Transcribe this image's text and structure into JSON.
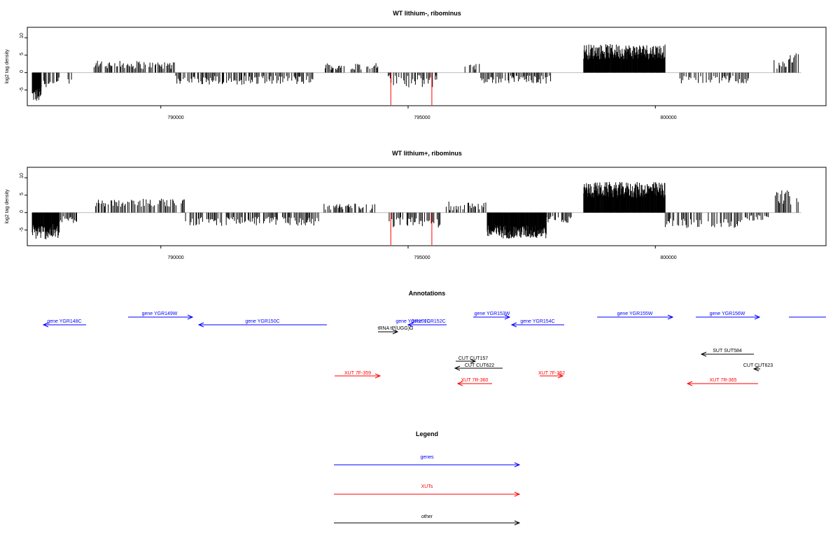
{
  "colors": {
    "genes": "#0000ff",
    "xuts": "#ff0000",
    "other": "#000000",
    "red_marker": "#ff0000"
  },
  "chart_data": [
    {
      "type": "bar",
      "title": "WT lithium-, ribominus",
      "ylabel": "log2 tag density",
      "xlim": [
        787300,
        803450
      ],
      "ylim": [
        -9.5,
        13
      ],
      "x_ticks": [
        "790000",
        "795000",
        "800000"
      ],
      "y_ticks": [
        "-5",
        "0",
        "5",
        "10"
      ],
      "red_markers": [
        794650,
        795480
      ],
      "segments": [
        {
          "x0": 787400,
          "x1": 787580,
          "base": -6.5,
          "amp": 2.0
        },
        {
          "x0": 787580,
          "x1": 787950,
          "base": -3.0,
          "amp": 1.6
        },
        {
          "x0": 788100,
          "x1": 788200,
          "base": -2.5,
          "amp": 0.8
        },
        {
          "x0": 788650,
          "x1": 790300,
          "base": 2.2,
          "amp": 1.2
        },
        {
          "x0": 790300,
          "x1": 793100,
          "base": -2.2,
          "amp": 1.3
        },
        {
          "x0": 793300,
          "x1": 794400,
          "base": 1.8,
          "amp": 1.0
        },
        {
          "x0": 794600,
          "x1": 795600,
          "base": -2.5,
          "amp": 1.8
        },
        {
          "x0": 796150,
          "x1": 796450,
          "base": 1.8,
          "amp": 1.0
        },
        {
          "x0": 796450,
          "x1": 797900,
          "base": -2.0,
          "amp": 1.2
        },
        {
          "x0": 798550,
          "x1": 800200,
          "base": 6.0,
          "amp": 2.2
        },
        {
          "x0": 800480,
          "x1": 801900,
          "base": -2.0,
          "amp": 1.1
        },
        {
          "x0": 802400,
          "x1": 802650,
          "base": 2.5,
          "amp": 1.4
        },
        {
          "x0": 802650,
          "x1": 802900,
          "base": 4.0,
          "amp": 1.8
        }
      ]
    },
    {
      "type": "bar",
      "title": "WT lithium+, ribominus",
      "ylabel": "log2 tag density",
      "xlim": [
        787300,
        803450
      ],
      "ylim": [
        -9.5,
        13
      ],
      "x_ticks": [
        "790000",
        "795000",
        "800000"
      ],
      "y_ticks": [
        "-5",
        "0",
        "5",
        "10"
      ],
      "red_markers": [
        794650,
        795480
      ],
      "segments": [
        {
          "x0": 787400,
          "x1": 787950,
          "base": -5.5,
          "amp": 2.2
        },
        {
          "x0": 787950,
          "x1": 788300,
          "base": -2.0,
          "amp": 1.0
        },
        {
          "x0": 788600,
          "x1": 790500,
          "base": 2.8,
          "amp": 1.2
        },
        {
          "x0": 790500,
          "x1": 793200,
          "base": -2.5,
          "amp": 1.3
        },
        {
          "x0": 793300,
          "x1": 794350,
          "base": 1.6,
          "amp": 1.0
        },
        {
          "x0": 794600,
          "x1": 795650,
          "base": -2.8,
          "amp": 1.5
        },
        {
          "x0": 795750,
          "x1": 796600,
          "base": 2.0,
          "amp": 1.3
        },
        {
          "x0": 796600,
          "x1": 797800,
          "base": -5.5,
          "amp": 2.0
        },
        {
          "x0": 797800,
          "x1": 798300,
          "base": -2.0,
          "amp": 1.0
        },
        {
          "x0": 798550,
          "x1": 800200,
          "base": 6.5,
          "amp": 2.3
        },
        {
          "x0": 800200,
          "x1": 801800,
          "base": -3.0,
          "amp": 1.4
        },
        {
          "x0": 801800,
          "x1": 802300,
          "base": -1.5,
          "amp": 0.8
        },
        {
          "x0": 802400,
          "x1": 802900,
          "base": 4.5,
          "amp": 2.2
        }
      ]
    }
  ],
  "annotations": {
    "title": "Annotations",
    "items": [
      {
        "label": "gene YGR148C",
        "group": "genes"
      },
      {
        "label": "gene YGR149W",
        "group": "genes"
      },
      {
        "label": "gene YGR150C",
        "group": "genes"
      },
      {
        "label": "gene YGR151C",
        "group": "genes"
      },
      {
        "label": "gene YGR152C",
        "group": "genes"
      },
      {
        "label": "gene YGR153W",
        "group": "genes"
      },
      {
        "label": "gene YGR154C",
        "group": "genes"
      },
      {
        "label": "gene YGR155W",
        "group": "genes"
      },
      {
        "label": "gene YGR156W",
        "group": "genes"
      },
      {
        "label": "",
        "group": "genes"
      },
      {
        "label": "tRNA tP(UGG)G",
        "group": "other"
      },
      {
        "label": "CUT CUT157",
        "group": "other"
      },
      {
        "label": "CUT CUT622",
        "group": "other"
      },
      {
        "label": "SUT SUT584",
        "group": "other"
      },
      {
        "label": "CUT CUT623",
        "group": "other"
      },
      {
        "label": "XUT 7F-359",
        "group": "xuts"
      },
      {
        "label": "XUT 7R-360",
        "group": "xuts"
      },
      {
        "label": "XUT 7F-362",
        "group": "xuts"
      },
      {
        "label": "XUT 7R-365",
        "group": "xuts"
      }
    ]
  },
  "legend": {
    "title": "Legend",
    "items": [
      {
        "label": "genes",
        "group": "genes"
      },
      {
        "label": "XUTs",
        "group": "xuts"
      },
      {
        "label": "other",
        "group": "other"
      }
    ]
  }
}
